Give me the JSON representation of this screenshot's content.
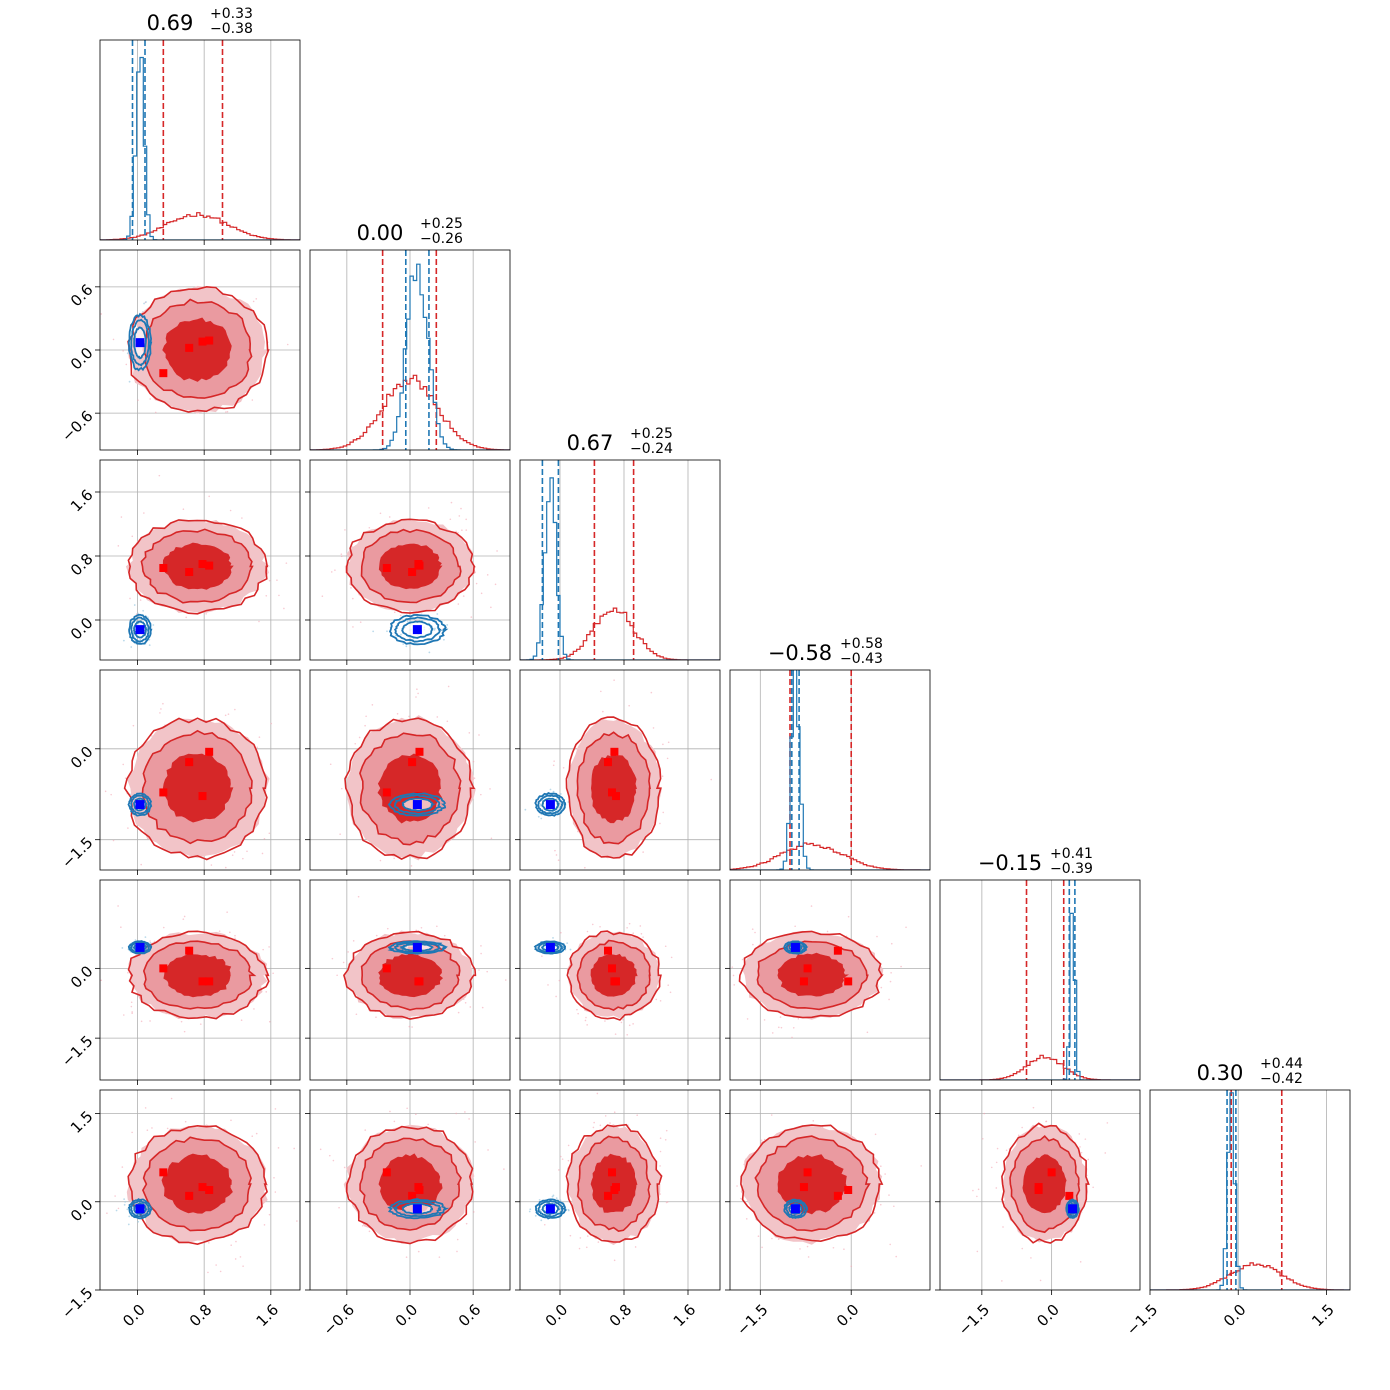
{
  "chart_data": {
    "type": "corner",
    "n_params": 6,
    "titles": [
      {
        "median": "0.69",
        "plus": "+0.33",
        "minus": "−0.38"
      },
      {
        "median": "0.00",
        "plus": "+0.25",
        "minus": "−0.26"
      },
      {
        "median": "0.67",
        "plus": "+0.25",
        "minus": "−0.24"
      },
      {
        "median": "−0.58",
        "plus": "+0.58",
        "minus": "−0.43"
      },
      {
        "median": "−0.15",
        "plus": "+0.41",
        "minus": "−0.39"
      },
      {
        "median": "0.30",
        "plus": "+0.44",
        "minus": "−0.42"
      }
    ],
    "ranges": [
      [
        -0.45,
        1.95
      ],
      [
        -0.95,
        0.95
      ],
      [
        -0.5,
        2.0
      ],
      [
        -2.0,
        1.3
      ],
      [
        -2.4,
        1.9
      ],
      [
        -1.5,
        1.9
      ]
    ],
    "ticks": [
      [
        0.0,
        0.8,
        1.6
      ],
      [
        -0.6,
        0.0,
        0.6
      ],
      [
        0.0,
        0.8,
        1.6
      ],
      [
        -1.5,
        0.0
      ],
      [
        -1.5,
        0.0
      ],
      [
        -1.5,
        0.0,
        1.5
      ]
    ],
    "tick_labels": [
      [
        "0.0",
        "0.8",
        "1.6"
      ],
      [
        "−0.6",
        "0.0",
        "0.6"
      ],
      [
        "0.0",
        "0.8",
        "1.6"
      ],
      [
        "−1.5",
        "0.0"
      ],
      [
        "−1.5",
        "0.0"
      ],
      [
        "−1.5",
        "0.0",
        "1.5"
      ]
    ],
    "series": [
      {
        "color": "#d62728",
        "mean": [
          0.72,
          0.0,
          0.67,
          -0.65,
          -0.15,
          0.3
        ],
        "std": [
          0.36,
          0.26,
          0.25,
          0.5,
          0.4,
          0.43
        ],
        "quantiles": [
          [
            0.31,
            1.02
          ],
          [
            -0.26,
            0.25
          ],
          [
            0.43,
            0.92
          ],
          [
            -1.01,
            0.0
          ],
          [
            -0.54,
            0.26
          ],
          [
            -0.12,
            0.74
          ]
        ],
        "points": [
          [
            0.31,
            -0.22,
            0.65,
            -0.72,
            0.0,
            0.5
          ],
          [
            0.62,
            0.02,
            0.6,
            -0.22,
            0.38,
            0.1
          ],
          [
            0.78,
            0.08,
            0.7,
            -0.78,
            -0.28,
            0.25
          ],
          [
            0.86,
            0.09,
            0.68,
            -0.05,
            -0.28,
            0.2
          ]
        ]
      },
      {
        "color": "#1f77b4",
        "mean": [
          0.03,
          0.07,
          -0.12,
          -0.92,
          0.45,
          -0.12
        ],
        "std": [
          0.05,
          0.1,
          0.07,
          0.07,
          0.05,
          0.06
        ],
        "quantiles": [
          [
            -0.06,
            0.09
          ],
          [
            -0.04,
            0.18
          ],
          [
            -0.22,
            -0.02
          ],
          [
            -0.98,
            -0.86
          ],
          [
            0.38,
            0.5
          ],
          [
            -0.19,
            -0.04
          ]
        ],
        "marker": [
          0.03,
          0.07,
          -0.12,
          -0.92,
          0.45,
          -0.12
        ],
        "marker_color": "#0000ff"
      }
    ],
    "grid": true
  }
}
